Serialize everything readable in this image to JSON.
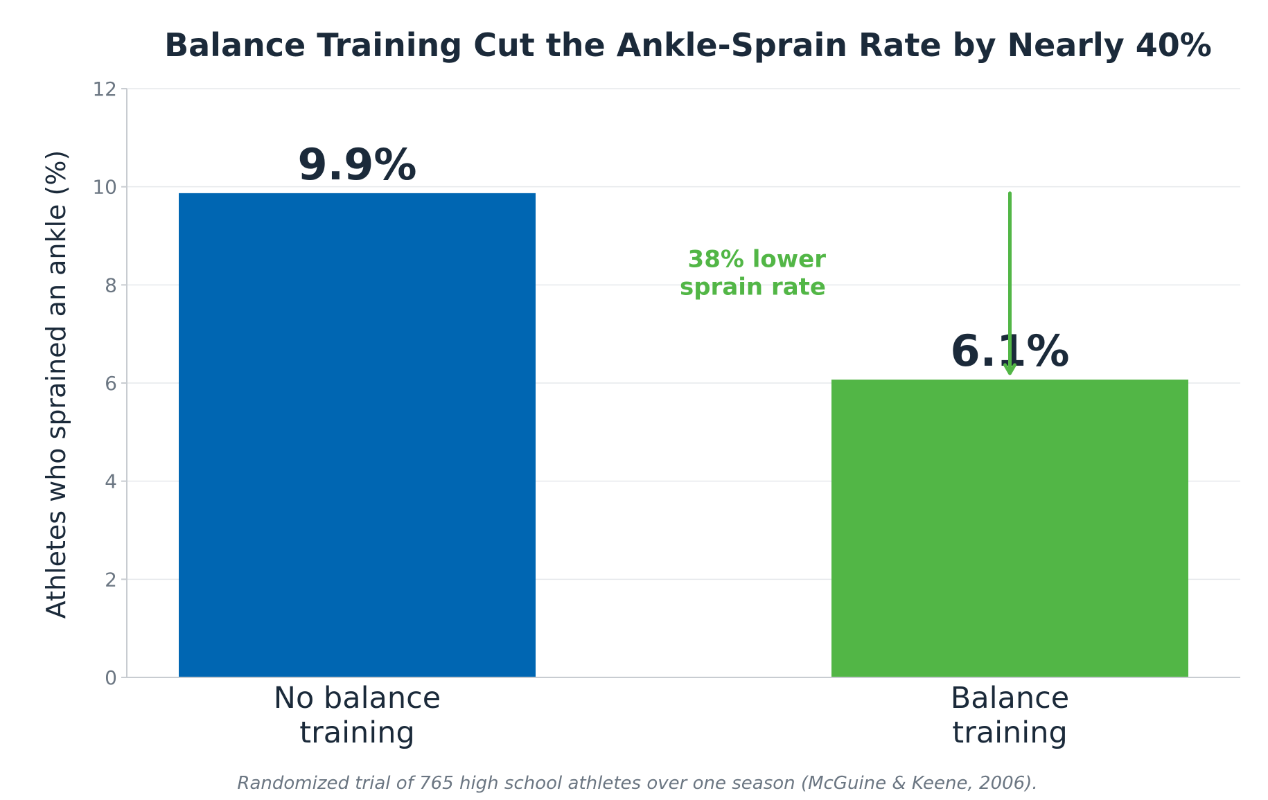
{
  "chart_data": {
    "type": "bar",
    "title": "Balance Training Cut the Ankle-Sprain Rate by Nearly 40%",
    "xlabel": "",
    "ylabel": "Athletes who sprained an ankle (%)",
    "categories": [
      [
        "No balance",
        "training"
      ],
      [
        "Balance",
        "training"
      ]
    ],
    "values": [
      9.87,
      6.07
    ],
    "value_labels": [
      "9.9%",
      "6.1%"
    ],
    "colors": [
      "#0066b2",
      "#52b646"
    ],
    "ylim": [
      0,
      12
    ],
    "yticks": [
      0,
      2,
      4,
      6,
      8,
      10,
      12
    ],
    "grid": "horizontal",
    "annotation": {
      "lines": [
        "38% lower",
        "sprain rate"
      ],
      "color": "#52b646",
      "arrow_from": 9.87,
      "arrow_to": 6.2
    },
    "caption": "Randomized trial of 765 high school athletes over one season (McGuine & Keene, 2006)."
  }
}
